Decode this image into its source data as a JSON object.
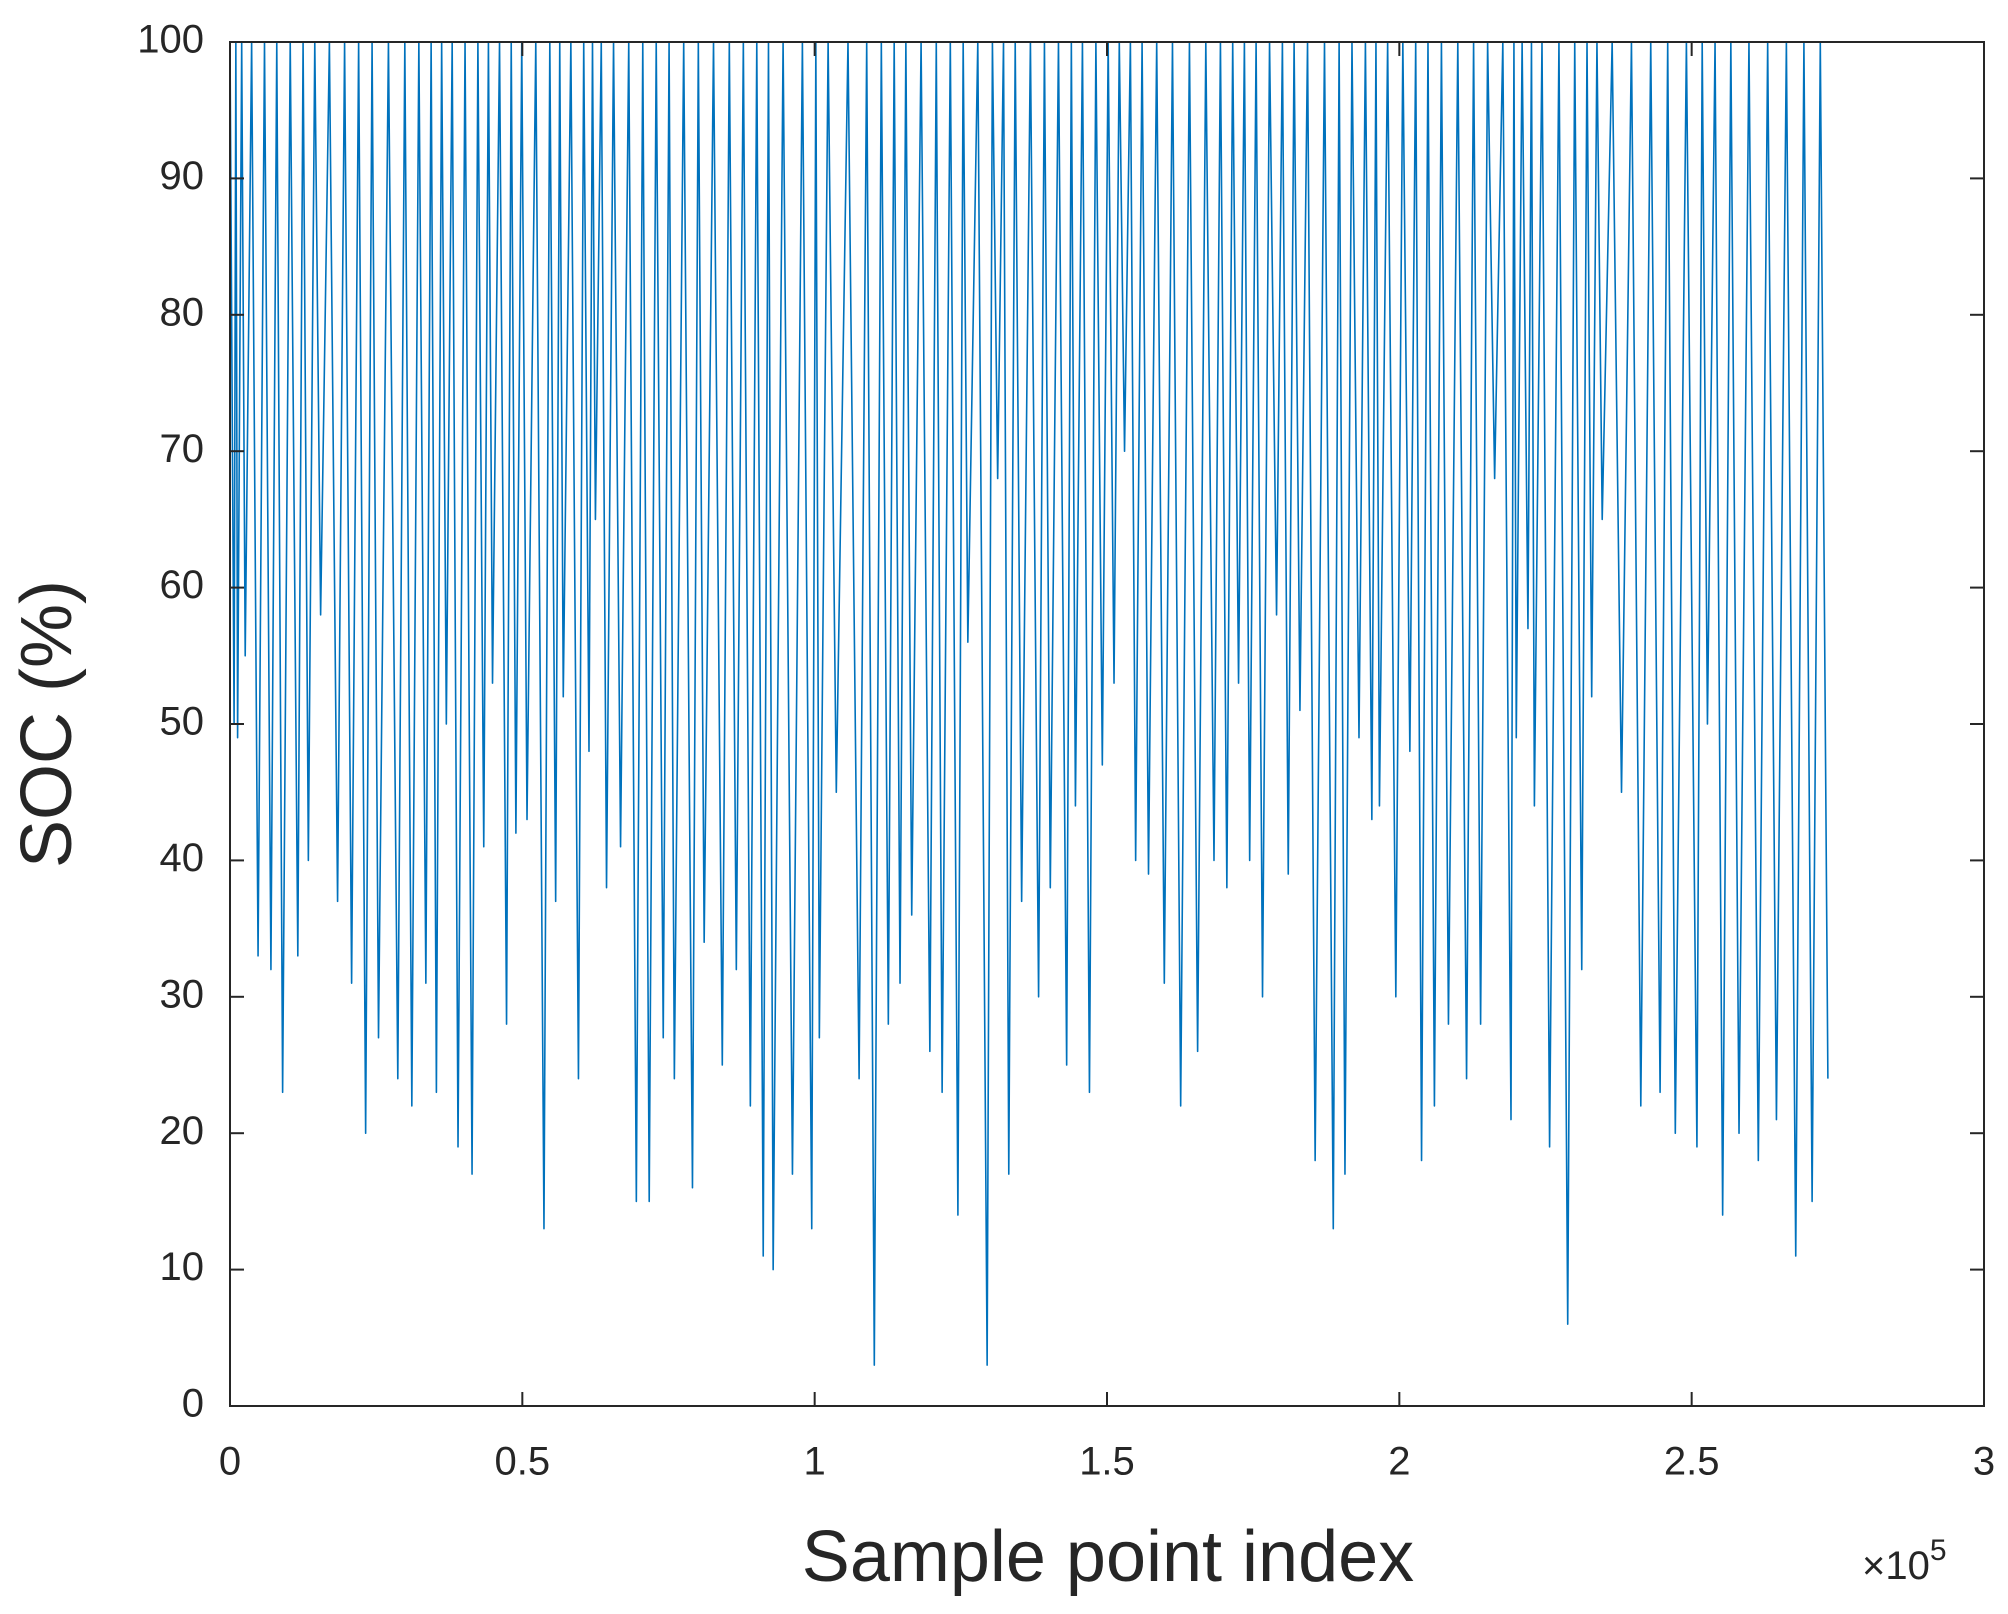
{
  "chart_data": {
    "type": "line",
    "xlabel": "Sample point index",
    "ylabel": "SOC (%)",
    "x_multiplier_base": "×10",
    "x_multiplier_exponent": "5",
    "color": "#0072bd",
    "xlim": [
      0,
      3
    ],
    "ylim": [
      0,
      100
    ],
    "xticks": [
      0,
      0.5,
      1,
      1.5,
      2,
      2.5,
      3
    ],
    "yticks": [
      0,
      10,
      20,
      30,
      40,
      50,
      60,
      70,
      80,
      90,
      100
    ],
    "grid": false,
    "x": [
      0,
      0.007,
      0.01,
      0.013,
      0.02,
      0.026,
      0.037,
      0.048,
      0.059,
      0.07,
      0.08,
      0.09,
      0.103,
      0.116,
      0.125,
      0.134,
      0.145,
      0.155,
      0.17,
      0.184,
      0.196,
      0.208,
      0.22,
      0.232,
      0.243,
      0.254,
      0.271,
      0.287,
      0.299,
      0.311,
      0.323,
      0.335,
      0.344,
      0.353,
      0.362,
      0.37,
      0.38,
      0.39,
      0.402,
      0.414,
      0.424,
      0.434,
      0.442,
      0.449,
      0.461,
      0.473,
      0.481,
      0.489,
      0.499,
      0.508,
      0.523,
      0.537,
      0.547,
      0.557,
      0.564,
      0.57,
      0.583,
      0.596,
      0.605,
      0.614,
      0.62,
      0.625,
      0.635,
      0.644,
      0.656,
      0.668,
      0.682,
      0.695,
      0.706,
      0.717,
      0.729,
      0.741,
      0.751,
      0.76,
      0.776,
      0.791,
      0.801,
      0.811,
      0.827,
      0.842,
      0.854,
      0.866,
      0.878,
      0.89,
      0.901,
      0.912,
      0.921,
      0.929,
      0.946,
      0.962,
      0.979,
      0.995,
      1.002,
      1.008,
      1.023,
      1.037,
      1.057,
      1.076,
      1.089,
      1.102,
      1.114,
      1.126,
      1.136,
      1.146,
      1.156,
      1.166,
      1.182,
      1.197,
      1.208,
      1.218,
      1.232,
      1.245,
      1.254,
      1.262,
      1.279,
      1.295,
      1.304,
      1.313,
      1.323,
      1.332,
      1.343,
      1.354,
      1.369,
      1.383,
      1.393,
      1.403,
      1.417,
      1.431,
      1.439,
      1.446,
      1.458,
      1.47,
      1.481,
      1.492,
      1.502,
      1.512,
      1.521,
      1.53,
      1.54,
      1.549,
      1.56,
      1.571,
      1.585,
      1.598,
      1.612,
      1.626,
      1.641,
      1.655,
      1.669,
      1.683,
      1.694,
      1.705,
      1.715,
      1.725,
      1.735,
      1.744,
      1.755,
      1.766,
      1.778,
      1.79,
      1.8,
      1.81,
      1.82,
      1.83,
      1.843,
      1.856,
      1.872,
      1.887,
      1.897,
      1.907,
      1.919,
      1.931,
      1.942,
      1.953,
      1.96,
      1.966,
      1.98,
      1.994,
      2.006,
      2.018,
      2.028,
      2.038,
      2.049,
      2.06,
      2.072,
      2.084,
      2.1,
      2.115,
      2.127,
      2.139,
      2.151,
      2.163,
      2.177,
      2.191,
      2.196,
      2.2,
      2.21,
      2.22,
      2.226,
      2.231,
      2.244,
      2.257,
      2.273,
      2.288,
      2.3,
      2.312,
      2.321,
      2.329,
      2.338,
      2.347,
      2.364,
      2.38,
      2.397,
      2.413,
      2.43,
      2.446,
      2.459,
      2.472,
      2.491,
      2.509,
      2.518,
      2.527,
      2.54,
      2.553,
      2.567,
      2.581,
      2.598,
      2.614,
      2.63,
      2.645,
      2.662,
      2.678,
      2.692,
      2.706,
      2.72,
      2.733
    ],
    "values": [
      100,
      50,
      100,
      49,
      100,
      55,
      100,
      33,
      100,
      32,
      100,
      23,
      100,
      33,
      100,
      40,
      100,
      58,
      100,
      37,
      100,
      31,
      100,
      20,
      100,
      27,
      100,
      24,
      100,
      22,
      100,
      31,
      100,
      23,
      100,
      50,
      100,
      19,
      100,
      17,
      100,
      41,
      100,
      53,
      100,
      28,
      100,
      42,
      100,
      43,
      100,
      13,
      100,
      37,
      100,
      52,
      100,
      24,
      100,
      48,
      100,
      65,
      100,
      38,
      100,
      41,
      100,
      15,
      100,
      15,
      100,
      27,
      100,
      24,
      100,
      16,
      100,
      34,
      100,
      25,
      100,
      32,
      100,
      22,
      100,
      11,
      100,
      10,
      100,
      17,
      100,
      13,
      100,
      27,
      100,
      45,
      100,
      24,
      100,
      3,
      100,
      28,
      100,
      31,
      100,
      36,
      100,
      26,
      100,
      23,
      100,
      14,
      100,
      56,
      100,
      3,
      100,
      68,
      100,
      17,
      100,
      37,
      100,
      30,
      100,
      38,
      100,
      25,
      100,
      44,
      100,
      23,
      100,
      47,
      100,
      53,
      100,
      70,
      100,
      40,
      100,
      39,
      100,
      31,
      100,
      22,
      100,
      26,
      100,
      40,
      100,
      38,
      100,
      53,
      100,
      40,
      100,
      30,
      100,
      58,
      100,
      39,
      100,
      51,
      100,
      18,
      100,
      13,
      100,
      17,
      100,
      49,
      100,
      43,
      100,
      44,
      100,
      30,
      100,
      48,
      100,
      18,
      100,
      22,
      100,
      28,
      100,
      24,
      100,
      28,
      100,
      68,
      100,
      21,
      100,
      49,
      100,
      57,
      100,
      44,
      100,
      19,
      100,
      6,
      100,
      32,
      100,
      52,
      100,
      65,
      100,
      45,
      100,
      22,
      100,
      23,
      100,
      20,
      100,
      19,
      100,
      50,
      100,
      14,
      100,
      20,
      100,
      18,
      100,
      21,
      100,
      11,
      100,
      15,
      100,
      24
    ]
  }
}
